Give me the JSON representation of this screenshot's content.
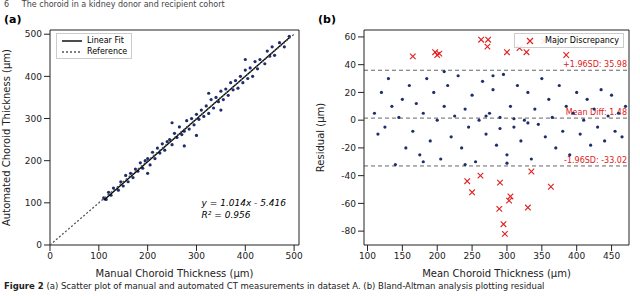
{
  "header": "6     The choroid in a kidney donor and recipient cohort",
  "caption": {
    "label": "Figure 2",
    "text": "(a) Scatter plot of manual and automated CT measurements in dataset A. (b) Bland-Altman analysis plotting residual"
  },
  "chart_data": [
    {
      "type": "scatter",
      "title": "(a)",
      "x_label": "Manual Choroid Thickness (μm)",
      "y_label": "Automated Choroid Thickness (μm)",
      "xlim": [
        0,
        510
      ],
      "ylim": [
        0,
        510
      ],
      "xticks": [
        0,
        100,
        200,
        300,
        400,
        500
      ],
      "yticks": [
        0,
        100,
        200,
        300,
        400,
        500
      ],
      "grid": false,
      "legend": "upper left",
      "annotations": [
        "y = 1.014x - 5.416",
        "R² = 0.956"
      ],
      "series": [
        {
          "type": "scatter",
          "marker": "o",
          "color": "#1f2d6b",
          "x": [
            110,
            115,
            120,
            125,
            130,
            140,
            145,
            150,
            155,
            160,
            165,
            170,
            175,
            180,
            185,
            190,
            195,
            200,
            205,
            210,
            215,
            220,
            225,
            230,
            235,
            240,
            245,
            250,
            255,
            260,
            265,
            270,
            275,
            280,
            285,
            290,
            295,
            300,
            305,
            310,
            315,
            320,
            325,
            330,
            335,
            340,
            345,
            350,
            355,
            360,
            365,
            370,
            375,
            380,
            385,
            390,
            395,
            400,
            405,
            410,
            415,
            420,
            425,
            430,
            440,
            445,
            450,
            455,
            460,
            470,
            480,
            490,
            300,
            250,
            200,
            350,
            400,
            275,
            325
          ],
          "values": [
            112,
            108,
            125,
            118,
            135,
            130,
            150,
            140,
            165,
            150,
            170,
            160,
            180,
            175,
            195,
            182,
            200,
            205,
            190,
            220,
            205,
            230,
            218,
            240,
            225,
            245,
            250,
            238,
            265,
            255,
            280,
            262,
            270,
            295,
            275,
            300,
            285,
            310,
            298,
            320,
            305,
            330,
            312,
            345,
            325,
            350,
            340,
            365,
            345,
            370,
            355,
            385,
            368,
            390,
            372,
            400,
            385,
            415,
            395,
            420,
            400,
            435,
            418,
            440,
            430,
            460,
            448,
            470,
            450,
            480,
            470,
            495,
            260,
            290,
            170,
            320,
            440,
            235,
            360
          ]
        },
        {
          "type": "line",
          "name": "Linear Fit",
          "line_style": "solid",
          "color": "#000000",
          "x": [
            110,
            490
          ],
          "values": [
            106.1,
            491.4
          ]
        },
        {
          "type": "line",
          "name": "Reference",
          "line_style": "dotted",
          "color": "#555555",
          "x": [
            0,
            500
          ],
          "values": [
            0,
            500
          ]
        }
      ]
    },
    {
      "type": "scatter",
      "title": "(b)",
      "x_label": "Mean Choroid Thickness (μm)",
      "y_label": "Residual (μm)",
      "xlim": [
        95,
        475
      ],
      "ylim": [
        -90,
        65
      ],
      "xticks": [
        100,
        150,
        200,
        250,
        300,
        350,
        400,
        450
      ],
      "yticks": [
        -80,
        -60,
        -40,
        -20,
        0,
        20,
        40,
        60
      ],
      "grid": false,
      "legend": "upper right",
      "hlines": [
        {
          "value": 35.98,
          "label": "+1.96SD: 35.98"
        },
        {
          "value": 1.48,
          "label": "Mean Diff: 1.48"
        },
        {
          "value": -33.02,
          "label": "-1.96SD: -33.02"
        }
      ],
      "series": [
        {
          "type": "scatter",
          "marker": "o",
          "color": "#1f2d6b",
          "x": [
            110,
            115,
            120,
            125,
            130,
            135,
            140,
            145,
            150,
            155,
            160,
            165,
            170,
            175,
            180,
            185,
            190,
            195,
            200,
            205,
            210,
            215,
            220,
            225,
            230,
            235,
            240,
            245,
            250,
            255,
            260,
            265,
            270,
            275,
            280,
            285,
            290,
            295,
            300,
            305,
            310,
            315,
            320,
            325,
            330,
            335,
            340,
            345,
            350,
            355,
            360,
            365,
            370,
            375,
            380,
            385,
            390,
            395,
            400,
            405,
            410,
            415,
            420,
            425,
            430,
            435,
            440,
            445,
            450,
            455,
            460,
            465,
            470,
            180,
            240,
            300,
            210,
            280,
            330,
            270,
            290,
            310
          ],
          "values": [
            5,
            -10,
            20,
            -5,
            30,
            10,
            -32,
            2,
            15,
            -20,
            25,
            -8,
            12,
            -25,
            5,
            30,
            -15,
            20,
            0,
            -28,
            10,
            25,
            -12,
            3,
            32,
            -20,
            8,
            -5,
            18,
            -30,
            0,
            28,
            -10,
            5,
            22,
            -18,
            2,
            33,
            -25,
            10,
            -5,
            25,
            -15,
            0,
            20,
            -28,
            8,
            -3,
            30,
            -12,
            15,
            2,
            -20,
            25,
            -8,
            10,
            -25,
            5,
            20,
            -10,
            0,
            15,
            -18,
            8,
            -5,
            22,
            -15,
            3,
            18,
            -8,
            5,
            -12,
            10,
            -30,
            -32,
            -31,
            35,
            32,
            -2,
            3,
            -6,
            1
          ]
        },
        {
          "type": "scatter",
          "name": "Major Discrepancy",
          "marker": "x",
          "color": "#e02020",
          "x": [
            165,
            197,
            203,
            200,
            263,
            273,
            300,
            318,
            328,
            353,
            272,
            385,
            243,
            250,
            262,
            289,
            295,
            297,
            290,
            303,
            305,
            330,
            363,
            335
          ],
          "values": [
            46,
            49,
            48,
            47,
            58,
            58,
            49,
            52,
            49,
            57,
            53,
            47,
            -44,
            -52,
            -40,
            -64,
            -75,
            -82,
            -45,
            -58,
            -55,
            -63,
            -48,
            -37
          ]
        }
      ]
    }
  ]
}
